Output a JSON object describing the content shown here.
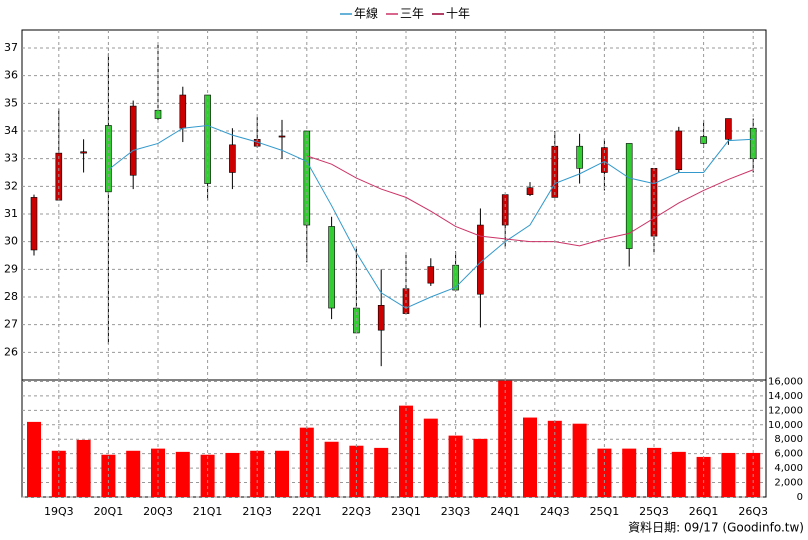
{
  "chart_data": [
    {
      "type": "candlestick",
      "open": [
        29.7,
        31.5,
        33.2,
        34.2,
        32.4,
        34.75,
        34.1,
        35.3,
        32.5,
        33.45,
        33.78,
        34.0,
        30.55,
        27.6,
        26.8,
        27.4,
        28.5,
        29.15,
        28.1,
        30.6,
        31.7,
        31.6,
        33.45,
        32.5,
        33.55,
        30.2,
        32.6,
        33.8,
        33.7,
        34.1
      ],
      "high": [
        31.7,
        34.8,
        33.7,
        36.8,
        35.1,
        37.2,
        35.6,
        35.3,
        34.1,
        34.5,
        34.4,
        34.0,
        30.9,
        29.8,
        29.0,
        29.6,
        29.4,
        29.65,
        31.2,
        31.7,
        32.15,
        34.0,
        33.9,
        33.7,
        33.55,
        32.65,
        34.15,
        34.4,
        34.45,
        34.45
      ],
      "low": [
        29.5,
        31.5,
        32.5,
        26.3,
        31.9,
        34.4,
        33.6,
        31.5,
        31.9,
        33.4,
        33.0,
        29.25,
        27.2,
        26.7,
        25.5,
        27.35,
        28.4,
        28.2,
        26.9,
        29.8,
        31.65,
        31.6,
        32.1,
        31.85,
        29.1,
        29.55,
        32.5,
        33.4,
        33.5,
        32.5
      ],
      "close": [
        31.6,
        33.2,
        33.25,
        31.8,
        34.9,
        34.45,
        35.3,
        32.1,
        33.5,
        33.7,
        33.82,
        30.6,
        27.6,
        26.7,
        27.7,
        28.3,
        29.1,
        28.25,
        30.6,
        31.7,
        31.95,
        33.45,
        32.65,
        33.4,
        29.75,
        32.65,
        34.0,
        33.55,
        34.45,
        33.0
      ],
      "up_color": "#cc0000",
      "down_color": "#33cc33",
      "series": [
        {
          "name": "年線",
          "color": "#3399cc",
          "values": [
            null,
            null,
            null,
            32.6,
            33.3,
            33.55,
            34.1,
            34.2,
            33.85,
            33.6,
            33.3,
            32.9,
            31.3,
            29.6,
            28.15,
            27.6,
            28.0,
            28.35,
            29.25,
            30.0,
            30.6,
            32.1,
            32.45,
            32.9,
            32.3,
            32.1,
            32.5,
            32.5,
            33.65,
            33.7
          ]
        },
        {
          "name": "三年",
          "color": "#cc3366",
          "values": [
            null,
            null,
            null,
            null,
            null,
            null,
            null,
            null,
            null,
            null,
            null,
            33.1,
            32.8,
            32.3,
            31.9,
            31.6,
            31.1,
            30.55,
            30.2,
            30.1,
            30.0,
            30.0,
            29.85,
            30.1,
            30.3,
            30.85,
            31.4,
            31.85,
            32.25,
            32.6
          ]
        },
        {
          "name": "十年",
          "color": "#990033",
          "values": [
            null,
            null,
            null,
            null,
            null,
            null,
            null,
            null,
            null,
            null,
            null,
            null,
            null,
            null,
            null,
            null,
            null,
            null,
            null,
            null,
            null,
            null,
            null,
            null,
            null,
            null,
            null,
            null,
            null,
            null
          ]
        }
      ],
      "ylim": [
        25,
        37.65
      ],
      "yticks": [
        26,
        27,
        28,
        29,
        30,
        31,
        32,
        33,
        34,
        35,
        36,
        37
      ],
      "grid": true,
      "legend": "top"
    },
    {
      "type": "bar",
      "categories": [
        null,
        "19Q3",
        null,
        "20Q1",
        null,
        "20Q3",
        null,
        "21Q1",
        null,
        "21Q3",
        null,
        "22Q1",
        null,
        "22Q3",
        null,
        "23Q1",
        null,
        "23Q3",
        null,
        "24Q1",
        null,
        "24Q3",
        null,
        "25Q1",
        null,
        "25Q3",
        null,
        "26Q1",
        null,
        "26Q3"
      ],
      "values": [
        10400,
        6400,
        7900,
        5850,
        6400,
        6700,
        6250,
        5850,
        6100,
        6400,
        6400,
        9600,
        7650,
        7100,
        6800,
        12650,
        10850,
        8500,
        8050,
        16100,
        11000,
        10550,
        10150,
        6700,
        6700,
        6800,
        6250,
        5550,
        6100,
        6100
      ],
      "color": "#ff0000",
      "ylim": [
        0,
        16200
      ],
      "yticks": [
        0,
        {
          "value": 2000,
          "label": "2,000"
        },
        {
          "value": 4000,
          "label": "4,000"
        },
        {
          "value": 6000,
          "label": "6,000"
        },
        {
          "value": 8000,
          "label": "8,000"
        },
        {
          "value": 10000,
          "label": "10,000"
        },
        {
          "value": 12000,
          "label": "12,000"
        },
        {
          "value": 14000,
          "label": "14,000"
        },
        {
          "value": 16000,
          "label": "16,000"
        }
      ],
      "grid": true
    }
  ],
  "footer": "資料日期: 09/17  (Goodinfo.tw)"
}
